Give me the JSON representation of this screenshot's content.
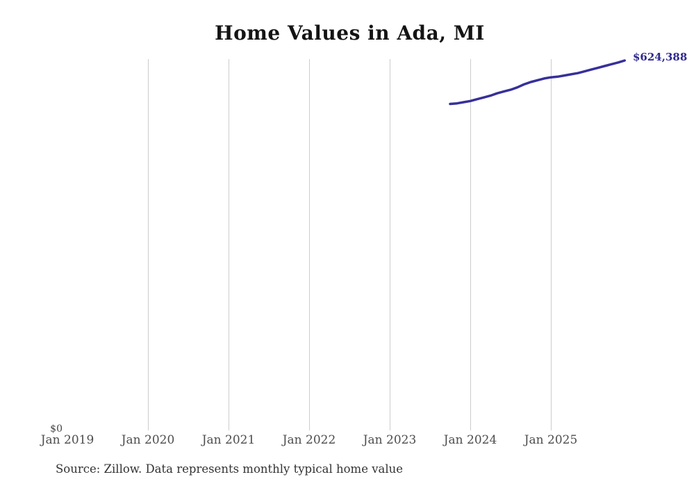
{
  "title": "Home Values in Ada, MI",
  "source_note": "Source: Zillow. Data represents monthly typical home value",
  "y_axis": {
    "zero_label": "$0"
  },
  "x_axis": {
    "tick_labels": [
      "Jan 2019",
      "Jan 2020",
      "Jan 2021",
      "Jan 2022",
      "Jan 2023",
      "Jan 2024",
      "Jan 2025"
    ]
  },
  "latest_value_label": "$624,388",
  "colors": {
    "line": "#37309a",
    "latest_label": "#2f2a8f",
    "grid": "#cccccc",
    "title": "#141414",
    "tick": "#4d4d4d",
    "source": "#333333"
  },
  "chart_data": {
    "type": "line",
    "title": "Home Values in Ada, MI",
    "xlabel": "",
    "ylabel": "",
    "ylim": [
      0,
      650000
    ],
    "grid": true,
    "legend_position": "none",
    "x_tick_labels": [
      "Jan 2019",
      "Jan 2020",
      "Jan 2021",
      "Jan 2022",
      "Jan 2023",
      "Jan 2024",
      "Jan 2025"
    ],
    "y_tick_labels": [
      "$0"
    ],
    "annotations": [
      "$624,388"
    ],
    "series": [
      {
        "name": "Typical home value",
        "x": [
          "2023-10",
          "2023-11",
          "2023-12",
          "2024-01",
          "2024-02",
          "2024-03",
          "2024-04",
          "2024-05",
          "2024-06",
          "2024-07",
          "2024-08",
          "2024-09",
          "2024-10",
          "2024-11",
          "2024-12",
          "2025-01",
          "2025-02",
          "2025-03",
          "2025-04",
          "2025-05",
          "2025-06",
          "2025-07",
          "2025-08",
          "2025-09",
          "2025-10",
          "2025-11",
          "2025-12"
        ],
        "values": [
          551000,
          552000,
          554000,
          556000,
          559000,
          562000,
          565000,
          569000,
          572000,
          575000,
          579000,
          584000,
          588000,
          591000,
          594000,
          596000,
          597000,
          599000,
          601000,
          603000,
          606000,
          609000,
          612000,
          615000,
          618000,
          621000,
          624388
        ]
      }
    ]
  }
}
